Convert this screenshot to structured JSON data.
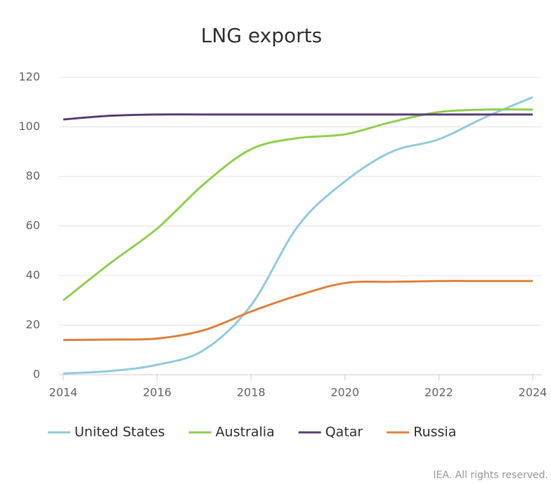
{
  "chart_data": {
    "type": "line",
    "title": "LNG exports",
    "x": [
      2014,
      2015,
      2016,
      2017,
      2018,
      2019,
      2020,
      2021,
      2022,
      2023,
      2024
    ],
    "series": [
      {
        "name": "United States",
        "color": "#92cbdd",
        "values": [
          0.5,
          1.5,
          4,
          10,
          28,
          60,
          78,
          90,
          95,
          104,
          112
        ]
      },
      {
        "name": "Australia",
        "color": "#8fd14f",
        "values": [
          30,
          45,
          59,
          77,
          91,
          95.5,
          97,
          102,
          106,
          107,
          107
        ]
      },
      {
        "name": "Qatar",
        "color": "#5b3f7a",
        "values": [
          103,
          104.5,
          105,
          105,
          105,
          105,
          105,
          105,
          105,
          105,
          105
        ]
      },
      {
        "name": "Russia",
        "color": "#e0823c",
        "values": [
          14,
          14.2,
          14.6,
          18,
          25.5,
          32,
          37,
          37.5,
          37.8,
          37.8,
          37.8
        ]
      }
    ],
    "xlim": [
      2014,
      2024
    ],
    "xticks": [
      2014,
      2016,
      2018,
      2020,
      2022,
      2024
    ],
    "ylim": [
      0,
      120
    ],
    "yticks": [
      0,
      20,
      40,
      60,
      80,
      100,
      120
    ],
    "grid": true,
    "legend": "bottom",
    "footer": "IEA. All rights reserved."
  }
}
